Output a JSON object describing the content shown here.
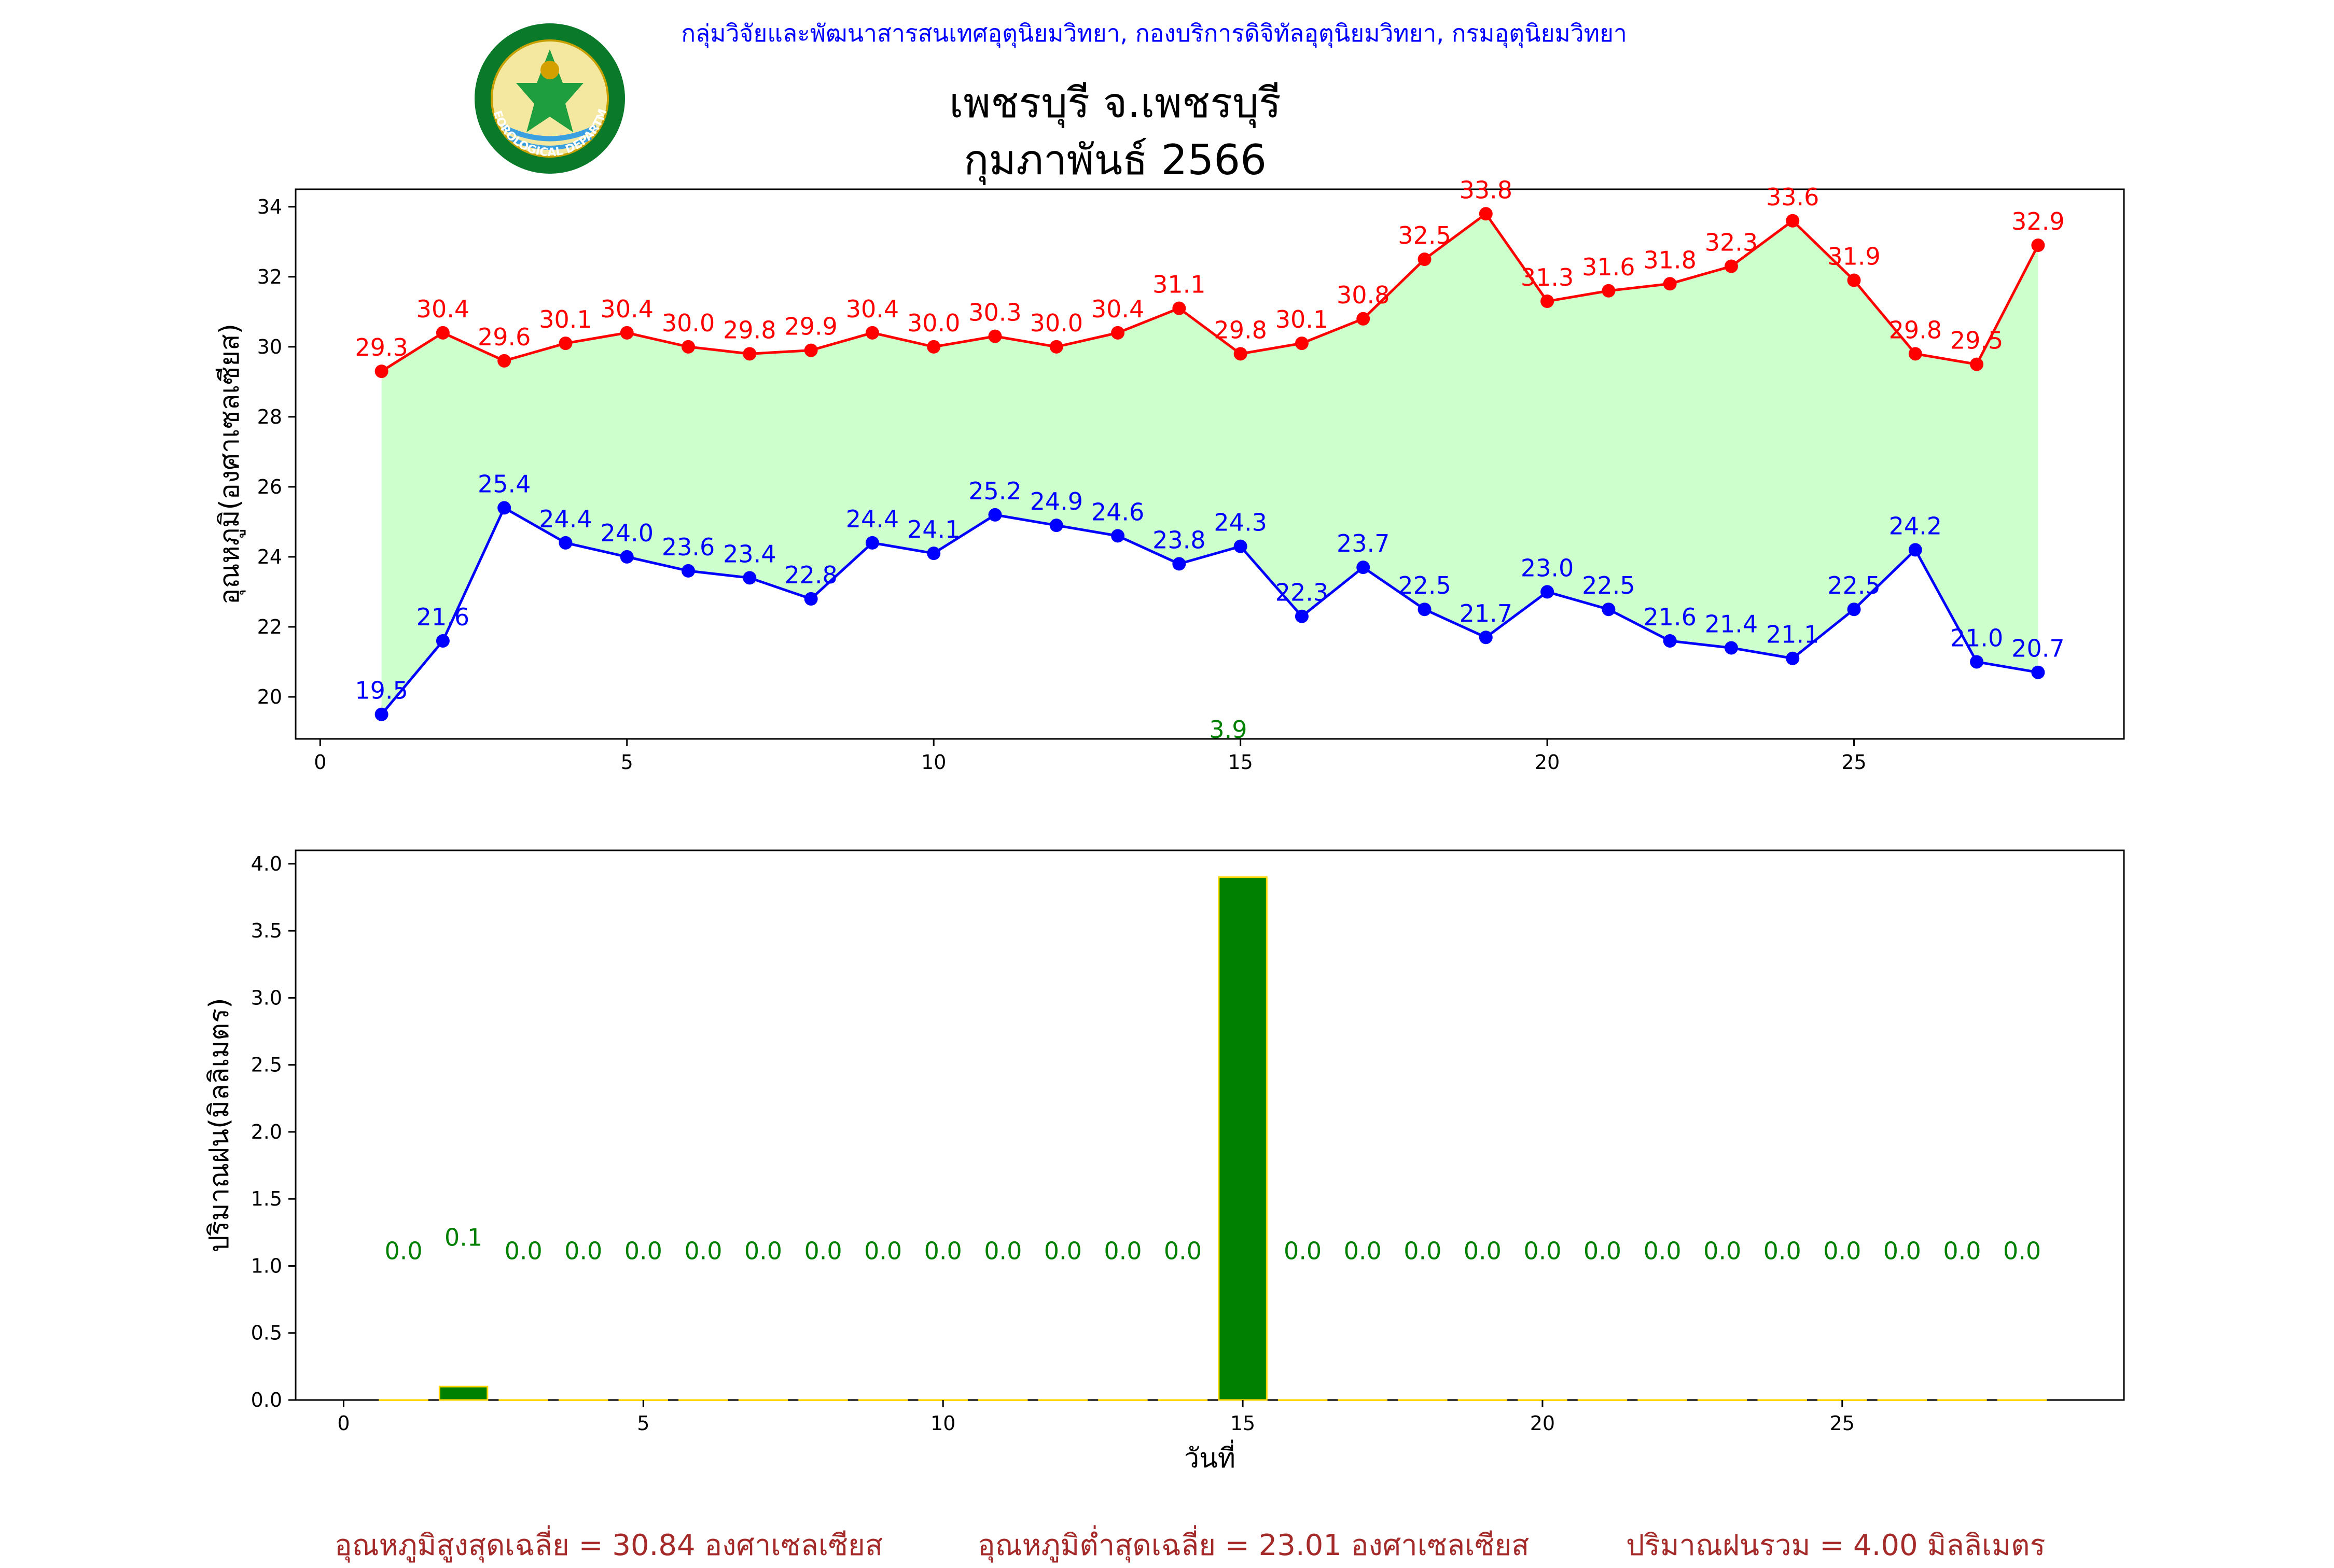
{
  "header": {
    "credit": "กลุ่มวิจัยและพัฒนาสารสนเทศอุตุนิยมวิทยา, กองบริการดิจิทัลอุตุนิยมวิทยา, กรมอุตุนิยมวิทยา",
    "station": "เพชรบุรี จ.เพชรบุรี",
    "period": "กุมภาพันธ์ 2566",
    "logo_text": "METEOROLOGICAL DEPARTMENT"
  },
  "footer": {
    "avg_max": "อุณหภูมิสูงสุดเฉลี่ย = 30.84 องศาเซลเซียส",
    "avg_min": "อุณหภูมิต่ำสุดเฉลี่ย = 23.01 องศาเซลเซียส",
    "total_rain": "ปริมาณฝนรวม = 4.00 มิลลิเมตร"
  },
  "colors": {
    "max_line": "#ff0000",
    "min_line": "#0000ff",
    "fill": "#ccffcc",
    "bar": "#008000",
    "bar_edge": "#ffd700",
    "rain_label": "#008000",
    "footer": "#a52a2a"
  },
  "chart_data": [
    {
      "type": "line",
      "ylabel": "อุณหภูมิ(องศาเซลเซียส)",
      "xlim": [
        -0.4,
        29.4
      ],
      "ylim": [
        18.8,
        34.5
      ],
      "xticks": [
        0,
        5,
        10,
        15,
        20,
        25
      ],
      "yticks": [
        20,
        22,
        24,
        26,
        28,
        30,
        32,
        34
      ],
      "x": [
        1,
        2,
        3,
        4,
        5,
        6,
        7,
        8,
        9,
        10,
        11,
        12,
        13,
        14,
        15,
        16,
        17,
        18,
        19,
        20,
        21,
        22,
        23,
        24,
        25,
        26,
        27,
        28
      ],
      "series": [
        {
          "role": "max",
          "color": "#ff0000",
          "values": [
            29.3,
            30.4,
            29.6,
            30.1,
            30.4,
            30.0,
            29.8,
            29.9,
            30.4,
            30.0,
            30.3,
            30.0,
            30.4,
            31.1,
            29.8,
            30.1,
            30.8,
            32.5,
            33.8,
            31.3,
            31.6,
            31.8,
            32.3,
            33.6,
            31.9,
            29.8,
            29.5,
            32.9
          ]
        },
        {
          "role": "min",
          "color": "#0000ff",
          "values": [
            19.5,
            21.6,
            25.4,
            24.4,
            24.0,
            23.6,
            23.4,
            22.8,
            24.4,
            24.1,
            25.2,
            24.9,
            24.6,
            23.8,
            24.3,
            22.3,
            23.7,
            22.5,
            21.7,
            23.0,
            22.5,
            21.6,
            21.4,
            21.1,
            22.5,
            24.2,
            21.0,
            20.7
          ]
        }
      ],
      "fill_between": {
        "from": 1,
        "to": 28,
        "color": "#ccffcc"
      },
      "stray_label": {
        "x": 14.8,
        "text": "3.9"
      }
    },
    {
      "type": "bar",
      "ylabel": "ปริมาณฝน(มิลลิเมตร)",
      "xlabel": "วันที่",
      "xlim": [
        -0.8,
        29.7
      ],
      "ylim": [
        0,
        4.1
      ],
      "xticks": [
        0,
        5,
        10,
        15,
        20,
        25
      ],
      "yticks": [
        0.0,
        0.5,
        1.0,
        1.5,
        2.0,
        2.5,
        3.0,
        3.5,
        4.0
      ],
      "x": [
        1,
        2,
        3,
        4,
        5,
        6,
        7,
        8,
        9,
        10,
        11,
        12,
        13,
        14,
        15,
        16,
        17,
        18,
        19,
        20,
        21,
        22,
        23,
        24,
        25,
        26,
        27,
        28
      ],
      "values": [
        0.0,
        0.1,
        0.0,
        0.0,
        0.0,
        0.0,
        0.0,
        0.0,
        0.0,
        0.0,
        0.0,
        0.0,
        0.0,
        0.0,
        3.9,
        0.0,
        0.0,
        0.0,
        0.0,
        0.0,
        0.0,
        0.0,
        0.0,
        0.0,
        0.0,
        0.0,
        0.0,
        0.0
      ],
      "labels": [
        "0.0",
        "0.1",
        "0.0",
        "0.0",
        "0.0",
        "0.0",
        "0.0",
        "0.0",
        "0.0",
        "0.0",
        "0.0",
        "0.0",
        "0.0",
        "0.0",
        "",
        "0.0",
        "0.0",
        "0.0",
        "0.0",
        "0.0",
        "0.0",
        "0.0",
        "0.0",
        "0.0",
        "0.0",
        "0.0",
        "0.0",
        "0.0"
      ],
      "label_y": [
        1.05,
        1.15,
        1.05,
        1.05,
        1.05,
        1.05,
        1.05,
        1.05,
        1.05,
        1.05,
        1.05,
        1.05,
        1.05,
        1.05,
        1.05,
        1.05,
        1.05,
        1.05,
        1.05,
        1.05,
        1.05,
        1.05,
        1.05,
        1.05,
        1.05,
        1.05,
        1.05,
        1.05
      ]
    }
  ]
}
